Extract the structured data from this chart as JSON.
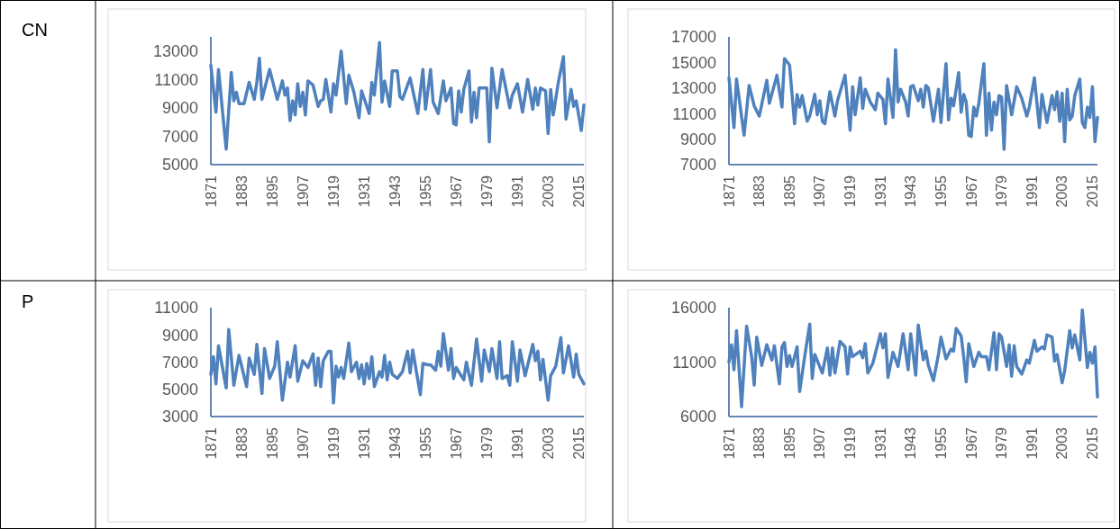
{
  "chart_data": [
    {
      "type": "line",
      "annotations": [
        "CN"
      ],
      "xlim": [
        1871,
        2017
      ],
      "xticks": [
        1871,
        1883,
        1895,
        1907,
        1919,
        1931,
        1943,
        1955,
        1967,
        1979,
        1991,
        2003,
        2015
      ],
      "ylim": [
        5000,
        14000
      ],
      "yticks": [
        5000,
        7000,
        9000,
        11000,
        13000
      ],
      "x": [
        1871,
        1873,
        1874,
        1877,
        1879,
        1880,
        1881,
        1882,
        1884,
        1886,
        1888,
        1889,
        1890,
        1891,
        1894,
        1897,
        1899,
        1900,
        1901,
        1902,
        1903,
        1904,
        1905,
        1906,
        1907,
        1908,
        1909,
        1911,
        1913,
        1914,
        1915,
        1916,
        1918,
        1919,
        1920,
        1922,
        1924,
        1925,
        1927,
        1929,
        1930,
        1933,
        1934,
        1935,
        1937,
        1938,
        1939,
        1941,
        1942,
        1944,
        1945,
        1946,
        1949,
        1952,
        1954,
        1955,
        1957,
        1958,
        1960,
        1962,
        1963,
        1965,
        1966,
        1967,
        1968,
        1969,
        1970,
        1972,
        1973,
        1974,
        1975,
        1976,
        1979,
        1980,
        1981,
        1983,
        1985,
        1988,
        1989,
        1991,
        1993,
        1995,
        1997,
        1998,
        1999,
        2000,
        2002,
        2003,
        2004,
        2005,
        2007,
        2009,
        2010,
        2012,
        2013,
        2014,
        2016,
        2017
      ],
      "series": [
        {
          "color": "#4f81bd",
          "values": [
            12000,
            8700,
            11700,
            6100,
            11500,
            9500,
            10100,
            9300,
            9300,
            10800,
            9600,
            10800,
            12500,
            9600,
            11700,
            9600,
            10900,
            9900,
            10400,
            8100,
            9500,
            8500,
            10700,
            9100,
            10100,
            8500,
            10900,
            10600,
            9100,
            9500,
            9600,
            11000,
            8700,
            10700,
            9900,
            13000,
            9300,
            11300,
            10100,
            8300,
            10200,
            8600,
            10800,
            9900,
            13600,
            9400,
            10900,
            9100,
            11600,
            11600,
            9800,
            9600,
            11100,
            8600,
            11700,
            8900,
            11700,
            9400,
            8600,
            10900,
            9500,
            10400,
            7900,
            7800,
            10200,
            8700,
            10300,
            11600,
            8000,
            10100,
            8300,
            10400,
            10400,
            6600,
            11800,
            9000,
            11700,
            9000,
            9900,
            10700,
            8700,
            11000,
            8900,
            10400,
            9200,
            10400,
            10200,
            7200,
            10300,
            8500,
            10800,
            12600,
            8200,
            10300,
            9100,
            9500,
            7400,
            9200
          ]
        }
      ]
    },
    {
      "type": "line",
      "xlim": [
        1871,
        2017
      ],
      "xticks": [
        1871,
        1883,
        1895,
        1907,
        1919,
        1931,
        1943,
        1955,
        1967,
        1979,
        1991,
        2003,
        2015
      ],
      "ylim": [
        7000,
        17000
      ],
      "yticks": [
        7000,
        9000,
        11000,
        13000,
        15000,
        17000
      ],
      "x": [
        1871,
        1873,
        1874,
        1877,
        1879,
        1881,
        1883,
        1886,
        1887,
        1890,
        1892,
        1893,
        1895,
        1897,
        1898,
        1899,
        1900,
        1902,
        1903,
        1905,
        1906,
        1907,
        1908,
        1909,
        1911,
        1913,
        1914,
        1917,
        1919,
        1920,
        1921,
        1923,
        1924,
        1925,
        1927,
        1929,
        1930,
        1932,
        1933,
        1934,
        1936,
        1937,
        1938,
        1939,
        1941,
        1942,
        1943,
        1944,
        1946,
        1947,
        1948,
        1949,
        1950,
        1952,
        1954,
        1955,
        1957,
        1958,
        1959,
        1960,
        1962,
        1963,
        1964,
        1965,
        1966,
        1967,
        1968,
        1969,
        1970,
        1972,
        1973,
        1974,
        1975,
        1976,
        1977,
        1978,
        1979,
        1980,
        1981,
        1983,
        1985,
        1987,
        1989,
        1990,
        1992,
        1994,
        1995,
        1997,
        1999,
        2000,
        2001,
        2002,
        2003,
        2004,
        2005,
        2006,
        2007,
        2008,
        2010,
        2011,
        2012,
        2013,
        2014,
        2015,
        2016,
        2017
      ],
      "series": [
        {
          "color": "#4f81bd",
          "values": [
            13800,
            9900,
            13700,
            9300,
            13200,
            11600,
            10800,
            13600,
            11800,
            14000,
            11500,
            15300,
            14800,
            10200,
            12500,
            11500,
            12400,
            10400,
            10800,
            12500,
            10900,
            12000,
            10400,
            10200,
            12700,
            10800,
            12000,
            14000,
            9700,
            13100,
            10900,
            13800,
            11400,
            12900,
            11900,
            11300,
            12600,
            12100,
            10200,
            13700,
            10700,
            16000,
            11900,
            12900,
            11900,
            10800,
            13100,
            13200,
            12000,
            12900,
            11500,
            13200,
            13000,
            10400,
            12900,
            10300,
            14900,
            10500,
            12200,
            11600,
            14200,
            11100,
            12500,
            11900,
            9300,
            9200,
            11500,
            10800,
            11800,
            14900,
            9300,
            12600,
            9700,
            11900,
            10900,
            12400,
            12300,
            8200,
            13200,
            10900,
            13100,
            12200,
            10800,
            11500,
            13800,
            9900,
            12500,
            10300,
            12400,
            11300,
            12700,
            10400,
            12600,
            8800,
            12900,
            10500,
            10800,
            12400,
            13700,
            10300,
            9900,
            11500,
            10700,
            13100,
            8800,
            10700
          ]
        }
      ]
    },
    {
      "type": "line",
      "annotations": [
        "P"
      ],
      "xlim": [
        1871,
        2017
      ],
      "xticks": [
        1871,
        1883,
        1895,
        1907,
        1919,
        1931,
        1943,
        1955,
        1967,
        1979,
        1991,
        2003,
        2015
      ],
      "ylim": [
        3000,
        11000
      ],
      "yticks": [
        3000,
        5000,
        7000,
        9000,
        11000
      ],
      "x": [
        1871,
        1872,
        1873,
        1874,
        1877,
        1878,
        1880,
        1882,
        1885,
        1886,
        1888,
        1889,
        1891,
        1892,
        1894,
        1896,
        1897,
        1899,
        1901,
        1902,
        1904,
        1905,
        1907,
        1909,
        1911,
        1912,
        1913,
        1914,
        1915,
        1917,
        1918,
        1919,
        1920,
        1921,
        1922,
        1923,
        1925,
        1926,
        1928,
        1929,
        1930,
        1931,
        1932,
        1933,
        1934,
        1935,
        1937,
        1938,
        1939,
        1940,
        1941,
        1942,
        1944,
        1946,
        1948,
        1949,
        1950,
        1953,
        1954,
        1956,
        1957,
        1959,
        1960,
        1961,
        1962,
        1964,
        1965,
        1966,
        1967,
        1970,
        1971,
        1973,
        1975,
        1977,
        1978,
        1980,
        1981,
        1983,
        1984,
        1985,
        1987,
        1988,
        1989,
        1991,
        1992,
        1994,
        1997,
        1998,
        1999,
        2000,
        2001,
        2003,
        2004,
        2006,
        2008,
        2009,
        2011,
        2013,
        2014,
        2015,
        2017
      ],
      "series": [
        {
          "color": "#4f81bd",
          "values": [
            6100,
            7400,
            5400,
            8200,
            5100,
            9400,
            5300,
            7500,
            5200,
            7300,
            6100,
            8300,
            4700,
            8000,
            5800,
            6700,
            8500,
            4200,
            7000,
            5900,
            8200,
            5600,
            7100,
            6600,
            7600,
            5300,
            7300,
            5200,
            7100,
            7800,
            7800,
            4000,
            6700,
            5900,
            6600,
            5800,
            8400,
            6300,
            7000,
            5800,
            6800,
            5400,
            6900,
            5800,
            7400,
            5200,
            6300,
            5900,
            7500,
            5700,
            7000,
            6100,
            5800,
            6300,
            7800,
            6200,
            7900,
            4600,
            6900,
            6800,
            6800,
            6400,
            7800,
            6700,
            9100,
            6400,
            8000,
            5800,
            6600,
            5700,
            7000,
            5300,
            8700,
            5600,
            7900,
            6300,
            8000,
            5800,
            8500,
            5800,
            6000,
            5300,
            8500,
            5600,
            7900,
            6000,
            8300,
            7100,
            7800,
            5700,
            7200,
            4200,
            6000,
            6700,
            8800,
            6200,
            8200,
            5900,
            7600,
            6100,
            5400
          ]
        }
      ]
    },
    {
      "type": "line",
      "xlim": [
        1871,
        2017
      ],
      "xticks": [
        1871,
        1883,
        1895,
        1907,
        1919,
        1931,
        1943,
        1955,
        1967,
        1979,
        1991,
        2003,
        2015
      ],
      "ylim": [
        6000,
        16000
      ],
      "yticks": [
        6000,
        11000,
        16000
      ],
      "x": [
        1871,
        1872,
        1873,
        1874,
        1876,
        1878,
        1880,
        1881,
        1882,
        1884,
        1886,
        1888,
        1889,
        1891,
        1892,
        1893,
        1894,
        1895,
        1896,
        1898,
        1899,
        1901,
        1903,
        1904,
        1905,
        1908,
        1910,
        1911,
        1912,
        1913,
        1915,
        1917,
        1918,
        1919,
        1920,
        1923,
        1924,
        1925,
        1926,
        1928,
        1931,
        1932,
        1933,
        1934,
        1936,
        1938,
        1940,
        1942,
        1943,
        1945,
        1946,
        1948,
        1949,
        1950,
        1952,
        1954,
        1955,
        1957,
        1959,
        1960,
        1961,
        1963,
        1964,
        1965,
        1966,
        1968,
        1970,
        1971,
        1973,
        1974,
        1976,
        1977,
        1978,
        1979,
        1981,
        1982,
        1983,
        1984,
        1985,
        1987,
        1989,
        1990,
        1992,
        1993,
        1995,
        1996,
        1997,
        1999,
        2000,
        2001,
        2003,
        2004,
        2006,
        2007,
        2008,
        2010,
        2011,
        2013,
        2014,
        2015,
        2016,
        2017
      ],
      "series": [
        {
          "color": "#4f81bd",
          "values": [
            11000,
            12600,
            10300,
            13900,
            6900,
            14300,
            11500,
            8900,
            13300,
            10700,
            12600,
            11200,
            12500,
            9000,
            12400,
            12800,
            10600,
            11600,
            10600,
            12400,
            8300,
            11500,
            14500,
            9500,
            11700,
            10000,
            12300,
            9800,
            12300,
            10000,
            12900,
            12400,
            9900,
            12400,
            11500,
            12000,
            11400,
            12700,
            10000,
            10900,
            13600,
            12300,
            13600,
            9600,
            11900,
            10600,
            13600,
            10300,
            13600,
            9800,
            14400,
            11200,
            12000,
            10700,
            9300,
            11700,
            13300,
            11300,
            12200,
            12000,
            14100,
            13400,
            11500,
            9200,
            12700,
            10600,
            11900,
            11500,
            11500,
            10300,
            13700,
            10300,
            13600,
            13300,
            10600,
            12600,
            9700,
            12500,
            10600,
            9900,
            11200,
            10900,
            13000,
            12000,
            12400,
            12200,
            13500,
            13300,
            11100,
            11700,
            9100,
            10200,
            13900,
            12300,
            13500,
            11200,
            15800,
            10500,
            11900,
            10900,
            12400,
            7800
          ]
        }
      ]
    }
  ]
}
